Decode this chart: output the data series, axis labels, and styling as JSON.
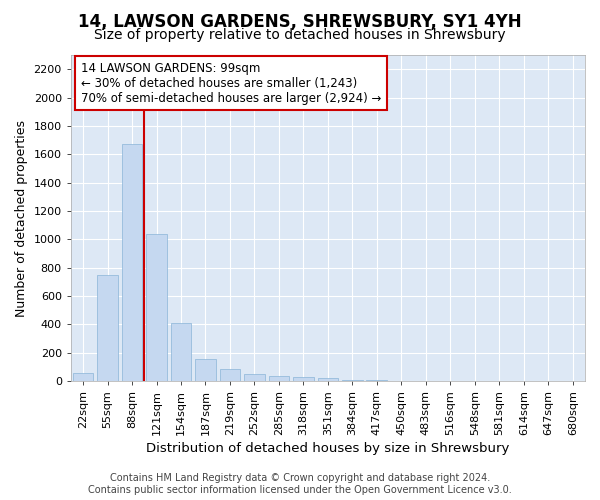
{
  "title": "14, LAWSON GARDENS, SHREWSBURY, SY1 4YH",
  "subtitle": "Size of property relative to detached houses in Shrewsbury",
  "xlabel": "Distribution of detached houses by size in Shrewsbury",
  "ylabel": "Number of detached properties",
  "footer_line1": "Contains HM Land Registry data © Crown copyright and database right 2024.",
  "footer_line2": "Contains public sector information licensed under the Open Government Licence v3.0.",
  "bar_labels": [
    "22sqm",
    "55sqm",
    "88sqm",
    "121sqm",
    "154sqm",
    "187sqm",
    "219sqm",
    "252sqm",
    "285sqm",
    "318sqm",
    "351sqm",
    "384sqm",
    "417sqm",
    "450sqm",
    "483sqm",
    "516sqm",
    "548sqm",
    "581sqm",
    "614sqm",
    "647sqm",
    "680sqm"
  ],
  "bar_values": [
    55,
    745,
    1670,
    1035,
    410,
    155,
    85,
    48,
    38,
    28,
    18,
    8,
    5,
    0,
    0,
    0,
    0,
    0,
    0,
    0,
    0
  ],
  "bar_color": "#c5d8f0",
  "bar_edgecolor": "#8ab4d8",
  "property_line_x": 2.5,
  "annotation_text": "14 LAWSON GARDENS: 99sqm\n← 30% of detached houses are smaller (1,243)\n70% of semi-detached houses are larger (2,924) →",
  "annotation_box_color": "#ffffff",
  "annotation_box_edgecolor": "#cc0000",
  "vline_color": "#cc0000",
  "ylim": [
    0,
    2300
  ],
  "yticks": [
    0,
    200,
    400,
    600,
    800,
    1000,
    1200,
    1400,
    1600,
    1800,
    2000,
    2200
  ],
  "background_color": "#ffffff",
  "plot_background": "#dde8f5",
  "grid_color": "#ffffff",
  "title_fontsize": 12,
  "subtitle_fontsize": 10,
  "xlabel_fontsize": 9.5,
  "ylabel_fontsize": 9,
  "tick_fontsize": 8,
  "annotation_fontsize": 8.5,
  "footer_fontsize": 7
}
